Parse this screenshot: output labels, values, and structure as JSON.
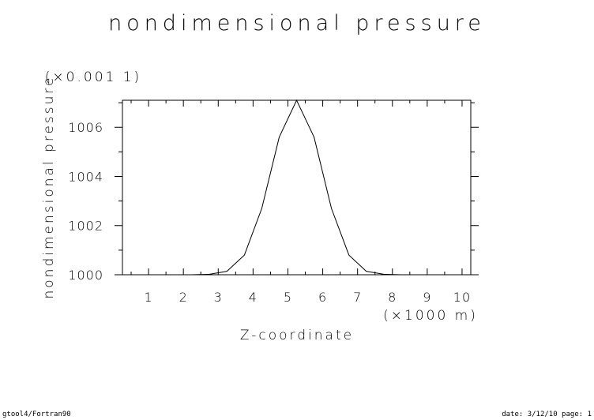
{
  "chart_data": {
    "type": "line",
    "title": "nondimensional pressure",
    "xlabel": "Z-coordinate",
    "x_scale_label": "(×1000 m)",
    "ylabel": "nondimensional pressure",
    "y_scale_label": "(×0.001 1)",
    "xlim": [
      0.25,
      10.25
    ],
    "ylim": [
      1000,
      1007.1
    ],
    "x_ticks": [
      "1",
      "2",
      "3",
      "4",
      "5",
      "6",
      "7",
      "8",
      "9",
      "10"
    ],
    "y_ticks": [
      "1000",
      "1002",
      "1004",
      "1006"
    ],
    "grid": false,
    "x": [
      0.25,
      0.75,
      1.25,
      1.75,
      2.25,
      2.75,
      3.25,
      3.75,
      4.25,
      4.75,
      5.25,
      5.75,
      6.25,
      6.75,
      7.25,
      7.75,
      8.25,
      8.75,
      9.25,
      9.75,
      10.25
    ],
    "values": [
      1000,
      1000,
      1000,
      1000,
      1000,
      1000.02,
      1000.14,
      1000.8,
      1002.7,
      1005.6,
      1007.1,
      1005.6,
      1002.7,
      1000.8,
      1000.14,
      1000.02,
      1000,
      1000,
      1000,
      1000,
      1000
    ]
  },
  "footer": {
    "left": "gtool4/Fortran90",
    "right": "date: 3/12/10 page: 1"
  }
}
